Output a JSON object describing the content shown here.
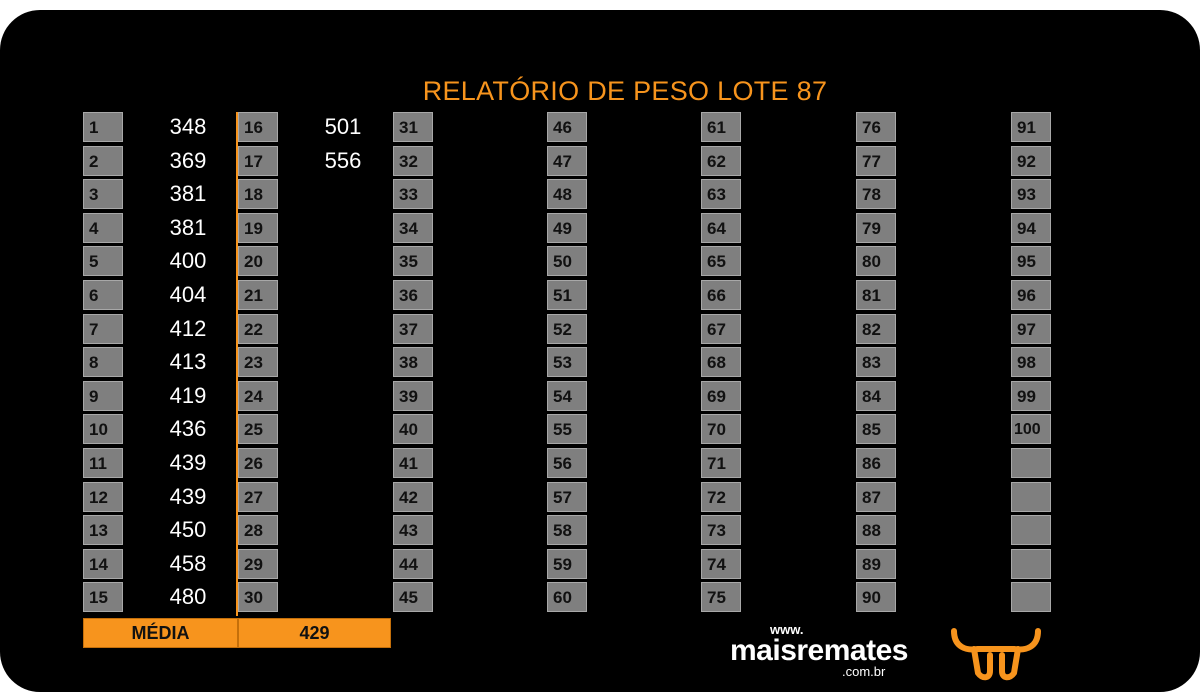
{
  "title": "RELATÓRIO DE PESO LOTE 87",
  "columns": [
    {
      "numbers": [
        "1",
        "2",
        "3",
        "4",
        "5",
        "6",
        "7",
        "8",
        "9",
        "10",
        "11",
        "12",
        "13",
        "14",
        "15"
      ],
      "weights": [
        "348",
        "369",
        "381",
        "381",
        "400",
        "404",
        "412",
        "413",
        "419",
        "436",
        "439",
        "439",
        "450",
        "458",
        "480"
      ]
    },
    {
      "numbers": [
        "16",
        "17",
        "18",
        "19",
        "20",
        "21",
        "22",
        "23",
        "24",
        "25",
        "26",
        "27",
        "28",
        "29",
        "30"
      ],
      "weights": [
        "501",
        "556",
        "",
        "",
        "",
        "",
        "",
        "",
        "",
        "",
        "",
        "",
        "",
        "",
        ""
      ]
    },
    {
      "numbers": [
        "31",
        "32",
        "33",
        "34",
        "35",
        "36",
        "37",
        "38",
        "39",
        "40",
        "41",
        "42",
        "43",
        "44",
        "45"
      ],
      "weights": [
        "",
        "",
        "",
        "",
        "",
        "",
        "",
        "",
        "",
        "",
        "",
        "",
        "",
        "",
        ""
      ]
    },
    {
      "numbers": [
        "46",
        "47",
        "48",
        "49",
        "50",
        "51",
        "52",
        "53",
        "54",
        "55",
        "56",
        "57",
        "58",
        "59",
        "60"
      ],
      "weights": [
        "",
        "",
        "",
        "",
        "",
        "",
        "",
        "",
        "",
        "",
        "",
        "",
        "",
        "",
        ""
      ]
    },
    {
      "numbers": [
        "61",
        "62",
        "63",
        "64",
        "65",
        "66",
        "67",
        "68",
        "69",
        "70",
        "71",
        "72",
        "73",
        "74",
        "75"
      ],
      "weights": [
        "",
        "",
        "",
        "",
        "",
        "",
        "",
        "",
        "",
        "",
        "",
        "",
        "",
        "",
        ""
      ]
    },
    {
      "numbers": [
        "76",
        "77",
        "78",
        "79",
        "80",
        "81",
        "82",
        "83",
        "84",
        "85",
        "86",
        "87",
        "88",
        "89",
        "90"
      ],
      "weights": [
        "",
        "",
        "",
        "",
        "",
        "",
        "",
        "",
        "",
        "",
        "",
        "",
        "",
        "",
        ""
      ]
    },
    {
      "numbers": [
        "91",
        "92",
        "93",
        "94",
        "95",
        "96",
        "97",
        "98",
        "99",
        "100",
        "",
        "",
        "",
        "",
        ""
      ],
      "weights": [
        "",
        "",
        "",
        "",
        "",
        "",
        "",
        "",
        "",
        "",
        "",
        "",
        "",
        "",
        ""
      ]
    }
  ],
  "summary": {
    "label": "MÉDIA",
    "value": "429"
  },
  "logo": {
    "www": "www.",
    "name": "maisremates",
    "domain": ".com.br",
    "icon": "bull-head-icon"
  },
  "colors": {
    "accent": "#f7941d",
    "cell": "#7f7f7f",
    "background": "#000000"
  }
}
